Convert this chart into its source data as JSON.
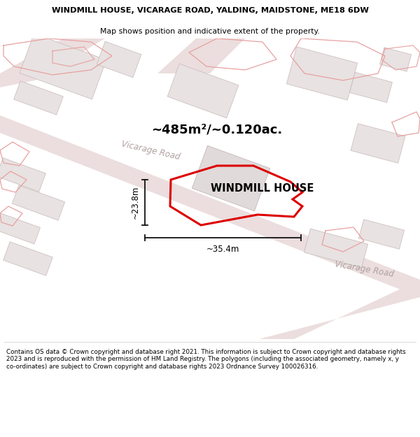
{
  "title_line1": "WINDMILL HOUSE, VICARAGE ROAD, YALDING, MAIDSTONE, ME18 6DW",
  "title_line2": "Map shows position and indicative extent of the property.",
  "footer_text": "Contains OS data © Crown copyright and database right 2021. This information is subject to Crown copyright and database rights 2023 and is reproduced with the permission of HM Land Registry. The polygons (including the associated geometry, namely x, y co-ordinates) are subject to Crown copyright and database rights 2023 Ordnance Survey 100026316.",
  "area_label": "~485m²/~0.120ac.",
  "property_label": "WINDMILL HOUSE",
  "dim_width": "~35.4m",
  "dim_height": "~23.8m",
  "map_bg": "#f5f2f2",
  "road_fill": "#ecdede",
  "building_fill": "#e8e2e2",
  "building_edge": "#c8b8b8",
  "boundary_color": "#dd0000",
  "pink_outline": "#e8a0a0",
  "road_text_color": "#b0a0a0",
  "dim_line_color": "#111111",
  "title_bg": "#ffffff",
  "footer_bg": "#ffffff",
  "separator_color": "#cccccc"
}
